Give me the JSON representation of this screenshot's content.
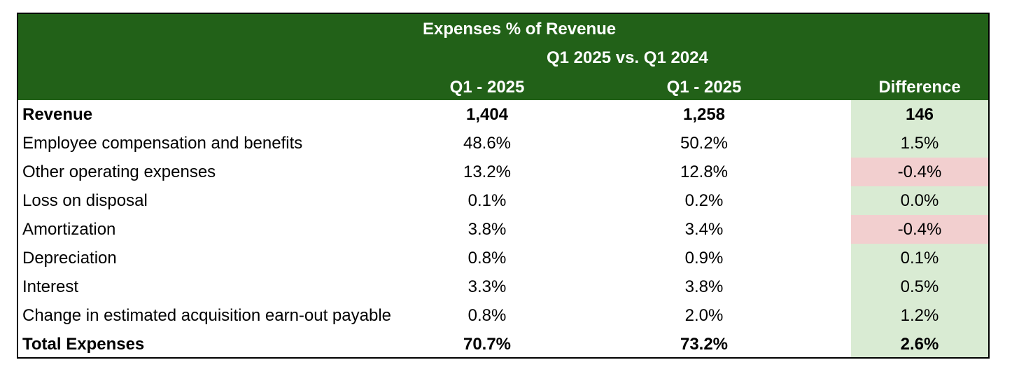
{
  "header": {
    "title": "Expenses % of Revenue",
    "subtitle": "Q1 2025 vs. Q1 2024",
    "col_q1": "Q1 - 2025",
    "col_q2": "Q1 - 2025",
    "col_diff": "Difference"
  },
  "colors": {
    "header_green": "#226118",
    "positive_fill": "#d9ebd3",
    "negative_fill": "#f2cfcf"
  },
  "rows": [
    {
      "label": "Revenue",
      "q1": "1,404",
      "q2": "1,258",
      "diff": "146",
      "bold": true,
      "tone": "positive"
    },
    {
      "label": "Employee compensation and benefits",
      "q1": "48.6%",
      "q2": "50.2%",
      "diff": "1.5%",
      "bold": false,
      "tone": "positive"
    },
    {
      "label": "Other operating expenses",
      "q1": "13.2%",
      "q2": "12.8%",
      "diff": "-0.4%",
      "bold": false,
      "tone": "negative"
    },
    {
      "label": "Loss on disposal",
      "q1": "0.1%",
      "q2": "0.2%",
      "diff": "0.0%",
      "bold": false,
      "tone": "positive"
    },
    {
      "label": "Amortization",
      "q1": "3.8%",
      "q2": "3.4%",
      "diff": "-0.4%",
      "bold": false,
      "tone": "negative"
    },
    {
      "label": "Depreciation",
      "q1": "0.8%",
      "q2": "0.9%",
      "diff": "0.1%",
      "bold": false,
      "tone": "positive"
    },
    {
      "label": "Interest",
      "q1": "3.3%",
      "q2": "3.8%",
      "diff": "0.5%",
      "bold": false,
      "tone": "positive"
    },
    {
      "label": "Change in estimated acquisition earn-out payable",
      "q1": "0.8%",
      "q2": "2.0%",
      "diff": "1.2%",
      "bold": false,
      "tone": "positive"
    },
    {
      "label": "Total Expenses",
      "q1": "70.7%",
      "q2": "73.2%",
      "diff": "2.6%",
      "bold": true,
      "tone": "positive"
    }
  ]
}
